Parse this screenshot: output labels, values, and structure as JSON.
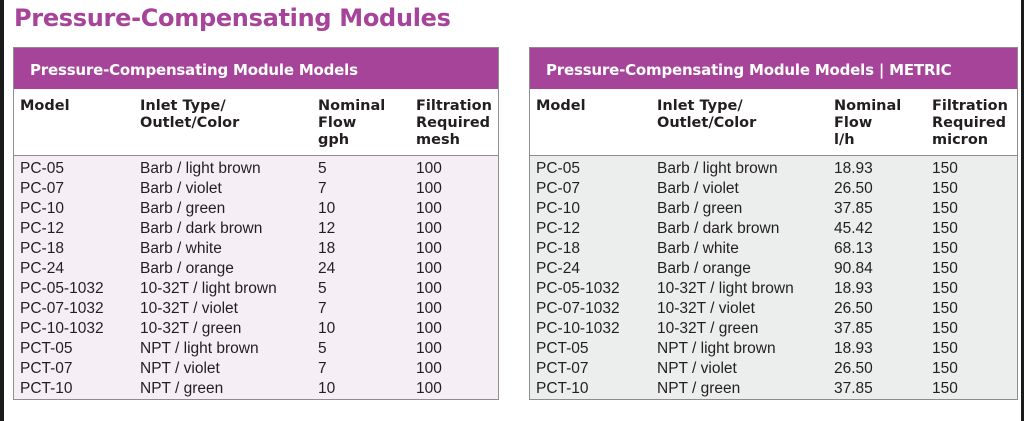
{
  "page_title": "Pressure-Compensating Modules",
  "tables": {
    "imperial": {
      "title": "Pressure-Compensating Module Models",
      "headers": [
        "Model",
        "Inlet Type/\nOutlet/Color",
        "Nominal\nFlow\ngph",
        "Filtration\nRequired\nmesh"
      ],
      "rows": [
        [
          "PC-05",
          "Barb / light brown",
          "5",
          "100"
        ],
        [
          "PC-07",
          "Barb / violet",
          "7",
          "100"
        ],
        [
          "PC-10",
          "Barb / green",
          "10",
          "100"
        ],
        [
          "PC-12",
          "Barb / dark brown",
          "12",
          "100"
        ],
        [
          "PC-18",
          "Barb / white",
          "18",
          "100"
        ],
        [
          "PC-24",
          "Barb / orange",
          "24",
          "100"
        ],
        [
          "PC-05-1032",
          "10-32T / light brown",
          "5",
          "100"
        ],
        [
          "PC-07-1032",
          "10-32T / violet",
          "7",
          "100"
        ],
        [
          "PC-10-1032",
          "10-32T / green",
          "10",
          "100"
        ],
        [
          "PCT-05",
          "NPT / light brown",
          "5",
          "100"
        ],
        [
          "PCT-07",
          "NPT / violet",
          "7",
          "100"
        ],
        [
          "PCT-10",
          "NPT / green",
          "10",
          "100"
        ]
      ]
    },
    "metric": {
      "title": "Pressure-Compensating Module Models | METRIC",
      "headers": [
        "Model",
        "Inlet Type/\nOutlet/Color",
        "Nominal\nFlow\nl/h",
        "Filtration\nRequired\nmicron"
      ],
      "rows": [
        [
          "PC-05",
          "Barb / light brown",
          "18.93",
          "150"
        ],
        [
          "PC-07",
          "Barb / violet",
          "26.50",
          "150"
        ],
        [
          "PC-10",
          "Barb / green",
          "37.85",
          "150"
        ],
        [
          "PC-12",
          "Barb / dark brown",
          "45.42",
          "150"
        ],
        [
          "PC-18",
          "Barb / white",
          "68.13",
          "150"
        ],
        [
          "PC-24",
          "Barb / orange",
          "90.84",
          "150"
        ],
        [
          "PC-05-1032",
          "10-32T / light brown",
          "18.93",
          "150"
        ],
        [
          "PC-07-1032",
          "10-32T / violet",
          "26.50",
          "150"
        ],
        [
          "PC-10-1032",
          "10-32T / green",
          "37.85",
          "150"
        ],
        [
          "PCT-05",
          "NPT / light brown",
          "18.93",
          "150"
        ],
        [
          "PCT-07",
          "NPT / violet",
          "26.50",
          "150"
        ],
        [
          "PCT-10",
          "NPT / green",
          "37.85",
          "150"
        ]
      ]
    }
  },
  "colors": {
    "accent": "#a6449a",
    "left_body_bg": "#f6eef5",
    "right_body_bg": "#eceeee",
    "text": "#231f20"
  }
}
